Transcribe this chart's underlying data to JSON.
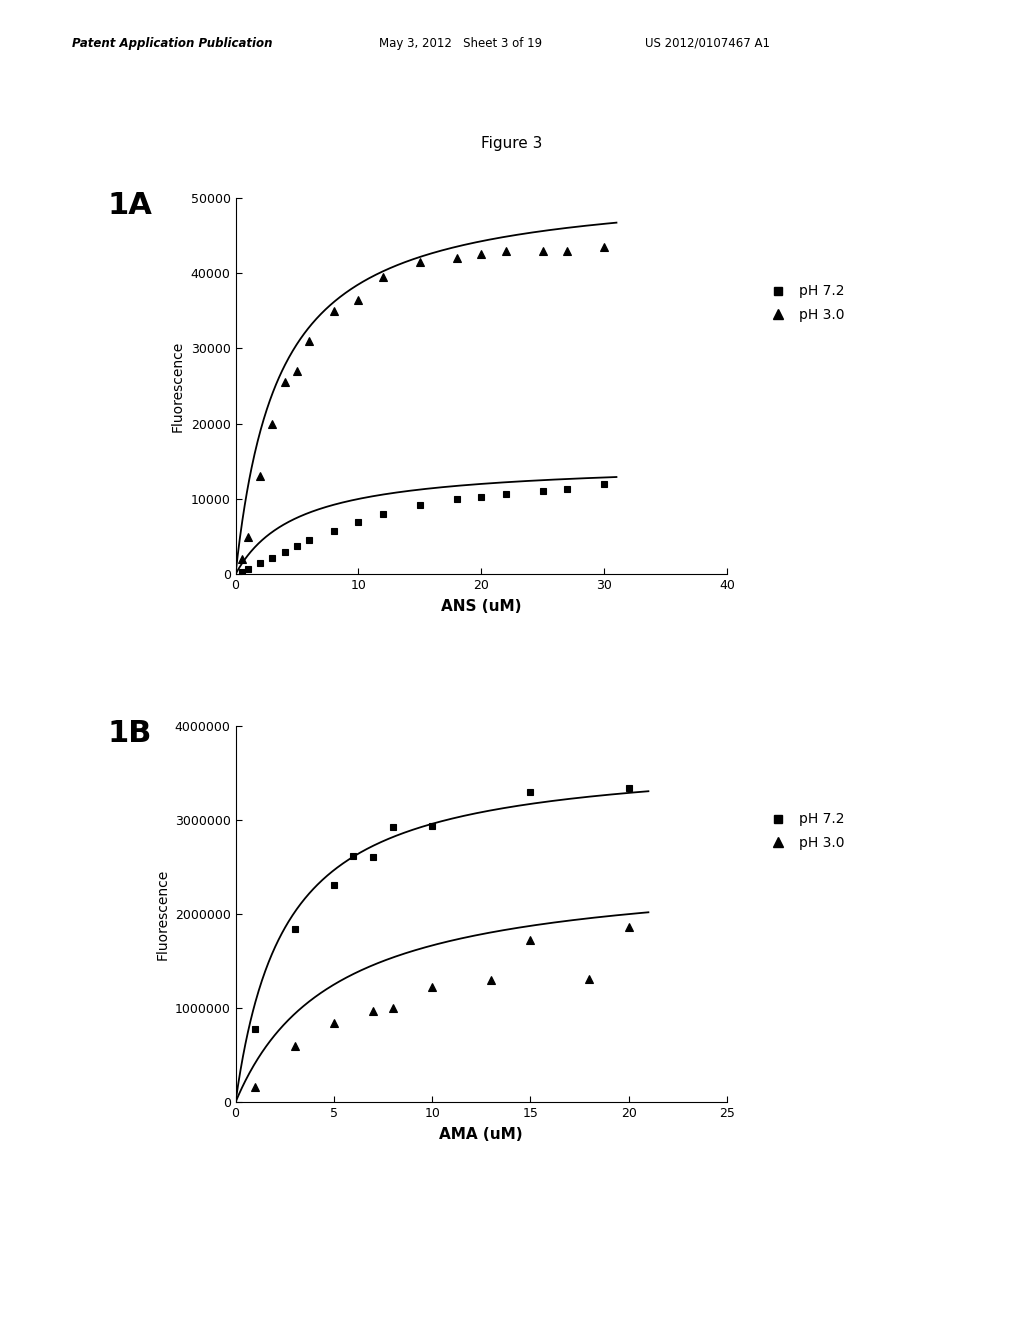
{
  "figure_title": "Figure 3",
  "background_color": "#ffffff",
  "panel_A": {
    "label": "1A",
    "xlabel": "ANS (uM)",
    "ylabel": "Fluorescence",
    "xlim": [
      0,
      40
    ],
    "ylim": [
      0,
      50000
    ],
    "xticks": [
      0,
      10,
      20,
      30,
      40
    ],
    "yticks": [
      0,
      10000,
      20000,
      30000,
      40000,
      50000
    ],
    "ph72": {
      "x": [
        0.5,
        1,
        2,
        3,
        4,
        5,
        6,
        8,
        10,
        12,
        15,
        18,
        20,
        22,
        25,
        27,
        30
      ],
      "y": [
        300,
        700,
        1500,
        2200,
        3000,
        3700,
        4500,
        5800,
        7000,
        8000,
        9200,
        10000,
        10300,
        10600,
        11000,
        11300,
        12000
      ],
      "label": "pH 7.2",
      "color": "#000000",
      "marker": "s",
      "Vmax": 15000,
      "Km": 5.0
    },
    "ph30": {
      "x": [
        0.5,
        1,
        2,
        3,
        4,
        5,
        6,
        8,
        10,
        12,
        15,
        18,
        20,
        22,
        25,
        27,
        30
      ],
      "y": [
        2000,
        5000,
        13000,
        20000,
        25500,
        27000,
        31000,
        35000,
        36500,
        39500,
        41500,
        42000,
        42500,
        43000,
        43000,
        43000,
        43500
      ],
      "label": "pH 3.0",
      "color": "#000000",
      "marker": "^",
      "Vmax": 52000,
      "Km": 3.5
    }
  },
  "panel_B": {
    "label": "1B",
    "xlabel": "AMA (uM)",
    "ylabel": "Fluorescence",
    "xlim": [
      0,
      25
    ],
    "ylim": [
      0,
      4000000
    ],
    "xticks": [
      0,
      5,
      10,
      15,
      20,
      25
    ],
    "yticks": [
      0,
      1000000,
      2000000,
      3000000,
      4000000
    ],
    "ph72": {
      "x": [
        1,
        3,
        5,
        6,
        7,
        8,
        10,
        15,
        20
      ],
      "y": [
        780000,
        1840000,
        2310000,
        2620000,
        2610000,
        2930000,
        2940000,
        3300000,
        3340000
      ],
      "label": "pH 7.2",
      "color": "#000000",
      "marker": "s",
      "Vmax": 3700000,
      "Km": 2.5
    },
    "ph30": {
      "x": [
        1,
        3,
        5,
        7,
        8,
        10,
        13,
        15,
        18,
        20
      ],
      "y": [
        160000,
        600000,
        840000,
        970000,
        1000000,
        1220000,
        1300000,
        1720000,
        1310000,
        1860000
      ],
      "label": "pH 3.0",
      "color": "#000000",
      "marker": "^",
      "Vmax": 2500000,
      "Km": 5.0
    }
  },
  "header_left": "Patent Application Publication",
  "header_middle": "May 3, 2012   Sheet 3 of 19",
  "header_right": "US 2012/0107467 A1"
}
